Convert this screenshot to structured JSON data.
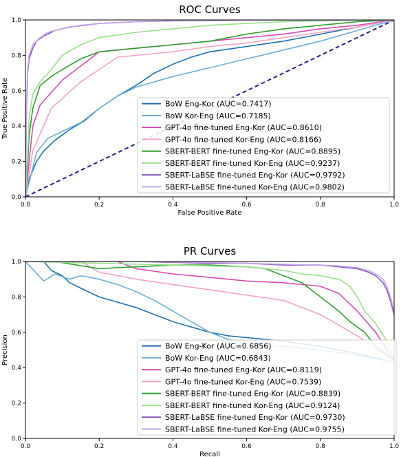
{
  "chart_data": [
    {
      "type": "line",
      "title": "ROC Curves",
      "xlabel": "False Positive Rate",
      "ylabel": "True Positive Rate",
      "xlim": [
        0,
        1
      ],
      "ylim": [
        0,
        1
      ],
      "xticks": [
        "0.0",
        "0.2",
        "0.4",
        "0.6",
        "0.8",
        "1.0"
      ],
      "yticks": [
        "0.0",
        "0.2",
        "0.4",
        "0.6",
        "0.8",
        "1.0"
      ],
      "grid": false,
      "legend_position": "lower-right",
      "reference_line": {
        "x": [
          0,
          1
        ],
        "y": [
          0,
          1
        ],
        "color": "#1f1f8f",
        "style": "dashed"
      },
      "series": [
        {
          "name": "BoW Eng-Kor (AUC=0.7417)",
          "color": "#1f6fb2",
          "x": [
            0,
            0.01,
            0.03,
            0.05,
            0.08,
            0.12,
            0.16,
            0.2,
            0.25,
            0.3,
            0.35,
            0.4,
            0.45,
            0.5,
            0.6,
            0.7,
            0.8,
            0.9,
            1.0
          ],
          "y": [
            0,
            0.1,
            0.2,
            0.26,
            0.32,
            0.38,
            0.43,
            0.5,
            0.57,
            0.63,
            0.7,
            0.75,
            0.79,
            0.82,
            0.85,
            0.88,
            0.92,
            0.96,
            1.0
          ]
        },
        {
          "name": "BoW Kor-Eng (AUC=0.7185)",
          "color": "#6baed6",
          "x": [
            0,
            0.01,
            0.03,
            0.06,
            0.1,
            0.15,
            0.2,
            0.25,
            0.3,
            0.4,
            0.5,
            0.6,
            0.7,
            0.8,
            0.9,
            1.0
          ],
          "y": [
            0,
            0.08,
            0.25,
            0.33,
            0.37,
            0.42,
            0.5,
            0.57,
            0.62,
            0.68,
            0.73,
            0.78,
            0.83,
            0.88,
            0.94,
            1.0
          ]
        },
        {
          "name": "GPT-4o fine-tuned Eng-Kor (AUC=0.8610)",
          "color": "#d64bb0",
          "x": [
            0,
            0.02,
            0.04,
            0.1,
            0.2,
            0.3,
            0.4,
            0.5,
            0.6,
            0.7,
            0.8,
            0.9,
            1.0
          ],
          "y": [
            0,
            0.4,
            0.52,
            0.66,
            0.82,
            0.84,
            0.86,
            0.88,
            0.9,
            0.92,
            0.95,
            0.97,
            1.0
          ]
        },
        {
          "name": "GPT-4o fine-tuned Kor-Eng (AUC=0.8166)",
          "color": "#f2a3c8",
          "x": [
            0,
            0.02,
            0.07,
            0.15,
            0.25,
            0.4,
            0.5,
            0.6,
            0.7,
            0.8,
            0.9,
            1.0
          ],
          "y": [
            0,
            0.26,
            0.5,
            0.65,
            0.79,
            0.82,
            0.85,
            0.87,
            0.9,
            0.93,
            0.96,
            1.0
          ]
        },
        {
          "name": "SBERT-BERT fine-tuned Eng-Kor (AUC=0.8895)",
          "color": "#2ca02c",
          "x": [
            0,
            0.005,
            0.01,
            0.02,
            0.04,
            0.07,
            0.1,
            0.15,
            0.2,
            0.3,
            0.4,
            0.5,
            0.6,
            0.7,
            0.8,
            0.9,
            1.0
          ],
          "y": [
            0,
            0.15,
            0.35,
            0.5,
            0.63,
            0.68,
            0.72,
            0.78,
            0.82,
            0.84,
            0.86,
            0.88,
            0.92,
            0.95,
            0.97,
            0.99,
            1.0
          ]
        },
        {
          "name": "SBERT-BERT fine-tuned Kor-Eng (AUC=0.9237)",
          "color": "#98df8a",
          "x": [
            0,
            0.005,
            0.01,
            0.02,
            0.04,
            0.07,
            0.1,
            0.15,
            0.2,
            0.3,
            0.4,
            0.5,
            0.6,
            0.7,
            0.8,
            0.9,
            1.0
          ],
          "y": [
            0,
            0.2,
            0.45,
            0.58,
            0.65,
            0.72,
            0.8,
            0.86,
            0.9,
            0.93,
            0.95,
            0.97,
            0.98,
            0.99,
            0.995,
            1.0,
            1.0
          ]
        },
        {
          "name": "SBERT-LaBSE fine-tuned Eng-Kor (AUC=0.9792)",
          "color": "#8a54c4",
          "x": [
            0,
            0.003,
            0.006,
            0.01,
            0.02,
            0.03,
            0.05,
            0.08,
            0.12,
            0.2,
            0.3,
            0.4,
            0.6,
            0.8,
            1.0
          ],
          "y": [
            0,
            0.5,
            0.7,
            0.78,
            0.84,
            0.88,
            0.91,
            0.94,
            0.96,
            0.98,
            0.99,
            0.995,
            1.0,
            1.0,
            1.0
          ]
        },
        {
          "name": "SBERT-LaBSE fine-tuned Kor-Eng (AUC=0.9802)",
          "color": "#c2a6e6",
          "x": [
            0,
            0.003,
            0.006,
            0.01,
            0.02,
            0.04,
            0.06,
            0.1,
            0.15,
            0.2,
            0.3,
            0.5,
            0.7,
            1.0
          ],
          "y": [
            0,
            0.55,
            0.72,
            0.8,
            0.86,
            0.9,
            0.93,
            0.95,
            0.97,
            0.98,
            0.99,
            1.0,
            1.0,
            1.0
          ]
        }
      ]
    },
    {
      "type": "line",
      "title": "PR Curves",
      "xlabel": "Recall",
      "ylabel": "Precision",
      "xlim": [
        0,
        1
      ],
      "ylim": [
        0,
        1
      ],
      "xticks": [
        "0.0",
        "0.2",
        "0.4",
        "0.6",
        "0.8",
        "1.0"
      ],
      "yticks": [
        "0.0",
        "0.2",
        "0.4",
        "0.6",
        "0.8",
        "1.0"
      ],
      "grid": false,
      "legend_position": "lower-right",
      "series": [
        {
          "name": "BoW Eng-Kor (AUC=0.6856)",
          "color": "#1f6fb2",
          "x": [
            0,
            0.05,
            0.07,
            0.1,
            0.12,
            0.15,
            0.2,
            0.25,
            0.3,
            0.35,
            0.4,
            0.45,
            0.5,
            0.55,
            0.6,
            0.7,
            0.8,
            0.9,
            1.0
          ],
          "y": [
            1.0,
            1.0,
            0.95,
            0.92,
            0.88,
            0.85,
            0.8,
            0.77,
            0.74,
            0.7,
            0.66,
            0.63,
            0.6,
            0.58,
            0.57,
            0.55,
            0.52,
            0.48,
            0.43
          ]
        },
        {
          "name": "BoW Kor-Eng (AUC=0.6843)",
          "color": "#6baed6",
          "x": [
            0,
            0.05,
            0.08,
            0.12,
            0.15,
            0.2,
            0.25,
            0.3,
            0.35,
            0.4,
            0.45,
            0.5,
            0.55,
            0.6,
            0.7,
            0.8,
            0.9,
            1.0
          ],
          "y": [
            1.0,
            0.89,
            0.93,
            0.9,
            0.92,
            0.9,
            0.87,
            0.83,
            0.78,
            0.72,
            0.66,
            0.6,
            0.56,
            0.54,
            0.52,
            0.5,
            0.47,
            0.43
          ]
        },
        {
          "name": "GPT-4o fine-tuned Eng-Kor (AUC=0.8119)",
          "color": "#d64bb0",
          "x": [
            0,
            0.25,
            0.3,
            0.4,
            0.5,
            0.6,
            0.7,
            0.8,
            0.85,
            0.9,
            0.95,
            1.0
          ],
          "y": [
            1.0,
            1.0,
            0.96,
            0.93,
            0.91,
            0.89,
            0.88,
            0.86,
            0.82,
            0.72,
            0.6,
            0.44
          ]
        },
        {
          "name": "GPT-4o fine-tuned Kor-Eng (AUC=0.7539)",
          "color": "#f2a3c8",
          "x": [
            0,
            0.15,
            0.2,
            0.3,
            0.4,
            0.5,
            0.6,
            0.7,
            0.8,
            0.9,
            1.0
          ],
          "y": [
            1.0,
            1.0,
            0.94,
            0.9,
            0.87,
            0.84,
            0.81,
            0.78,
            0.7,
            0.58,
            0.44
          ]
        },
        {
          "name": "SBERT-BERT fine-tuned Eng-Kor (AUC=0.8839)",
          "color": "#2ca02c",
          "x": [
            0,
            0.08,
            0.2,
            0.3,
            0.4,
            0.5,
            0.6,
            0.65,
            0.7,
            0.75,
            0.8,
            0.85,
            0.88,
            0.92,
            0.95,
            1.0
          ],
          "y": [
            1.0,
            1.0,
            0.96,
            0.97,
            0.98,
            0.98,
            0.97,
            0.96,
            0.92,
            0.88,
            0.8,
            0.72,
            0.66,
            0.6,
            0.52,
            0.44
          ]
        },
        {
          "name": "SBERT-BERT fine-tuned Kor-Eng (AUC=0.9124)",
          "color": "#98df8a",
          "x": [
            0,
            0.2,
            0.4,
            0.6,
            0.7,
            0.75,
            0.8,
            0.85,
            0.88,
            0.9,
            0.92,
            0.95,
            0.98,
            1.0
          ],
          "y": [
            1.0,
            0.99,
            0.98,
            0.97,
            0.95,
            0.93,
            0.92,
            0.9,
            0.86,
            0.8,
            0.72,
            0.65,
            0.55,
            0.45
          ]
        },
        {
          "name": "SBERT-LaBSE fine-tuned Eng-Kor (AUC=0.9730)",
          "color": "#8a54c4",
          "x": [
            0,
            0.3,
            0.5,
            0.6,
            0.7,
            0.8,
            0.85,
            0.9,
            0.93,
            0.95,
            0.97,
            0.98,
            0.99,
            1.0
          ],
          "y": [
            1.0,
            1.0,
            0.99,
            0.99,
            0.98,
            0.98,
            0.97,
            0.96,
            0.94,
            0.92,
            0.88,
            0.84,
            0.78,
            0.7
          ]
        },
        {
          "name": "SBERT-LaBSE fine-tuned Kor-Eng (AUC=0.9755)",
          "color": "#c2a6e6",
          "x": [
            0,
            0.3,
            0.5,
            0.6,
            0.7,
            0.8,
            0.85,
            0.9,
            0.93,
            0.95,
            0.97,
            0.98,
            0.99,
            1.0
          ],
          "y": [
            1.0,
            1.0,
            0.995,
            0.99,
            0.985,
            0.98,
            0.975,
            0.965,
            0.95,
            0.93,
            0.9,
            0.86,
            0.8,
            0.72
          ]
        }
      ]
    }
  ]
}
